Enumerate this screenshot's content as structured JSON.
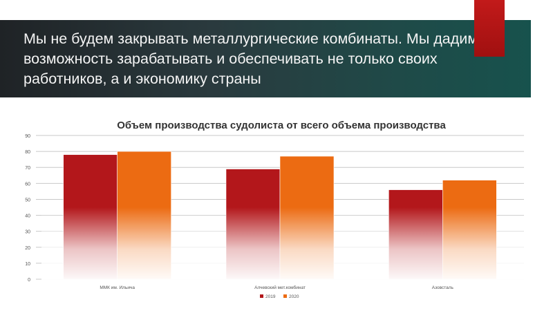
{
  "slide": {
    "title": "Мы не будем закрывать металлургические комбинаты. Мы дадим им возможность зарабатывать и обеспечивать не только своих работников, а и экономику страны"
  },
  "colors": {
    "series_2019": "#b3171b",
    "series_2020": "#ec6b12",
    "header_bg": "#22373a",
    "accent": "#b81515"
  },
  "chart_data": {
    "type": "bar",
    "title": "Объем производства судолиста от всего объема производства",
    "categories": [
      "ММК им. Ильича",
      "Алчевский мет.комбинат",
      "Азовсталь"
    ],
    "series": [
      {
        "name": "2019",
        "values": [
          78,
          69,
          56
        ]
      },
      {
        "name": "2020",
        "values": [
          80,
          77,
          62
        ]
      }
    ],
    "ylim": [
      0,
      90
    ],
    "yticks": [
      "0",
      "10",
      "20",
      "30",
      "40",
      "50",
      "60",
      "70",
      "80",
      "90"
    ],
    "grid": true,
    "legend_position": "bottom"
  }
}
